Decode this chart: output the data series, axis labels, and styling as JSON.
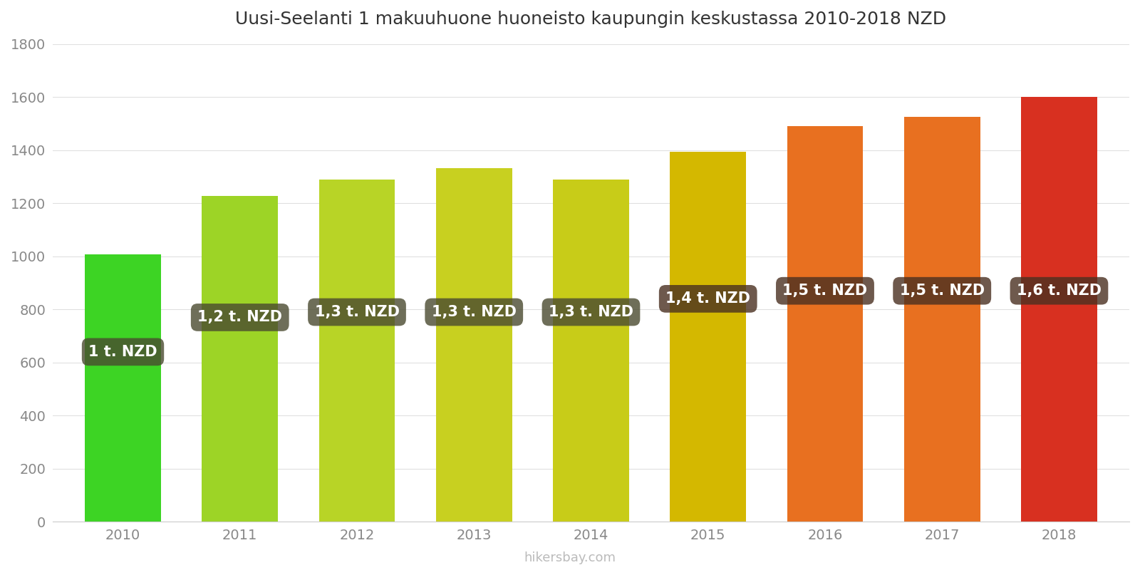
{
  "title": "Uusi-Seelanti 1 makuuhuone huoneisto kaupungin keskustassa 2010-2018 NZD",
  "years": [
    2010,
    2011,
    2012,
    2013,
    2014,
    2015,
    2016,
    2017,
    2018
  ],
  "values": [
    1007,
    1228,
    1290,
    1333,
    1288,
    1395,
    1490,
    1525,
    1600
  ],
  "bar_colors": [
    "#3dd424",
    "#9dd426",
    "#b8d426",
    "#c8d020",
    "#c8cc18",
    "#d4b800",
    "#e87020",
    "#e87020",
    "#d83020"
  ],
  "labels": [
    "1 t. NZD",
    "1,2 t. NZD",
    "1,3 t. NZD",
    "1,3 t. NZD",
    "1,3 t. NZD",
    "1,4 t. NZD",
    "1,5 t. NZD",
    "1,5 t. NZD",
    "1,6 t. NZD"
  ],
  "label_y_positions": [
    640,
    770,
    790,
    790,
    790,
    840,
    870,
    870,
    870
  ],
  "label_text_color": "#ffffff",
  "ylabel_max": 1800,
  "yticks": [
    0,
    200,
    400,
    600,
    800,
    1000,
    1200,
    1400,
    1600,
    1800
  ],
  "background_color": "#ffffff",
  "watermark": "hikersbay.com",
  "title_fontsize": 18,
  "tick_fontsize": 14,
  "label_fontsize": 15
}
